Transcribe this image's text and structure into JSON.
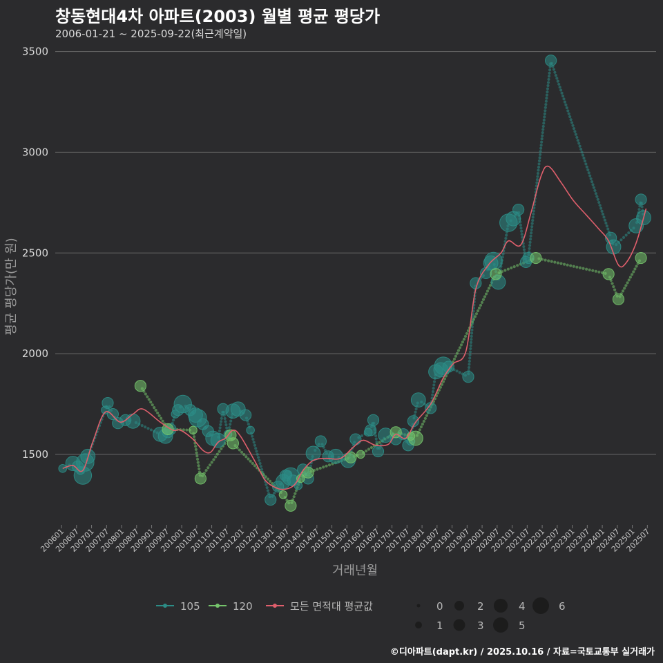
{
  "header": {
    "title": "창동현대4차 아파트(2003) 월별 평균 평당가",
    "subtitle": "2006-01-21 ~ 2025-09-22(최근계약일)"
  },
  "caption": "©디아파트(dapt.kr) / 2025.10.16 / 자료=국토교통부 실거래가",
  "colors": {
    "s105": "#2c8d86",
    "s120": "#75c46b",
    "avg": "#e05f6c",
    "grid": "#6a6a6a"
  },
  "chart_data": {
    "type": "scatter",
    "title": "창동현대4차 아파트(2003) 월별 평균 평당가",
    "xlabel": "거래년월",
    "ylabel": "평균 평당가(만 원)",
    "ylim": [
      1150,
      3550
    ],
    "yticks": [
      1500,
      2000,
      2500,
      3000,
      3500
    ],
    "xlim": [
      2005.833,
      2025.833
    ],
    "x_ticks": [
      "200601",
      "200607",
      "200701",
      "200707",
      "200801",
      "200807",
      "200901",
      "200907",
      "201001",
      "201007",
      "201101",
      "201107",
      "201201",
      "201207",
      "201301",
      "201307",
      "201401",
      "201407",
      "201501",
      "201507",
      "201601",
      "201607",
      "201701",
      "201707",
      "201801",
      "201807",
      "201901",
      "201907",
      "202001",
      "202007",
      "202101",
      "202107",
      "202201",
      "202207",
      "202301",
      "202307",
      "202401",
      "202407",
      "202501",
      "202507"
    ],
    "series": [
      {
        "name": "105",
        "points": [
          [
            2006.08,
            1430,
            1
          ],
          [
            2006.42,
            1455,
            3
          ],
          [
            2006.58,
            1440,
            2
          ],
          [
            2006.67,
            1420,
            1
          ],
          [
            2006.75,
            1395,
            4
          ],
          [
            2006.83,
            1460,
            4
          ],
          [
            2006.92,
            1490,
            3
          ],
          [
            2007.5,
            1720,
            1
          ],
          [
            2007.58,
            1755,
            2
          ],
          [
            2007.75,
            1700,
            2
          ],
          [
            2007.92,
            1655,
            2
          ],
          [
            2008.17,
            1670,
            2
          ],
          [
            2008.42,
            1665,
            3
          ],
          [
            2009.33,
            1600,
            3
          ],
          [
            2009.5,
            1590,
            3
          ],
          [
            2009.58,
            1610,
            2
          ],
          [
            2009.67,
            1625,
            2
          ],
          [
            2009.83,
            1700,
            1
          ],
          [
            2009.92,
            1720,
            2
          ],
          [
            2010.08,
            1750,
            4
          ],
          [
            2010.33,
            1720,
            2
          ],
          [
            2010.5,
            1695,
            3
          ],
          [
            2010.58,
            1680,
            4
          ],
          [
            2010.75,
            1650,
            2
          ],
          [
            2010.92,
            1615,
            2
          ],
          [
            2011.08,
            1580,
            3
          ],
          [
            2011.25,
            1570,
            3
          ],
          [
            2011.42,
            1725,
            2
          ],
          [
            2011.58,
            1600,
            1
          ],
          [
            2011.75,
            1715,
            3
          ],
          [
            2011.92,
            1725,
            3
          ],
          [
            2012.17,
            1695,
            2
          ],
          [
            2012.33,
            1620,
            1
          ],
          [
            2013.0,
            1275,
            2
          ],
          [
            2013.25,
            1340,
            2
          ],
          [
            2013.42,
            1365,
            3
          ],
          [
            2013.5,
            1395,
            2
          ],
          [
            2013.58,
            1400,
            1
          ],
          [
            2013.67,
            1390,
            4
          ],
          [
            2013.75,
            1370,
            2
          ],
          [
            2013.92,
            1345,
            1
          ],
          [
            2014.08,
            1425,
            2
          ],
          [
            2014.25,
            1380,
            2
          ],
          [
            2014.42,
            1505,
            3
          ],
          [
            2014.67,
            1565,
            2
          ],
          [
            2014.92,
            1490,
            2
          ],
          [
            2015.17,
            1490,
            3
          ],
          [
            2015.58,
            1470,
            3
          ],
          [
            2015.83,
            1575,
            2
          ],
          [
            2016.25,
            1610,
            1
          ],
          [
            2016.33,
            1620,
            2
          ],
          [
            2016.42,
            1670,
            2
          ],
          [
            2016.58,
            1515,
            2
          ],
          [
            2016.83,
            1595,
            3
          ],
          [
            2017.17,
            1575,
            2
          ],
          [
            2017.42,
            1600,
            2
          ],
          [
            2017.58,
            1545,
            2
          ],
          [
            2017.67,
            1565,
            1
          ],
          [
            2017.75,
            1665,
            2
          ],
          [
            2017.92,
            1770,
            3
          ],
          [
            2018.33,
            1730,
            2
          ],
          [
            2018.5,
            1910,
            3
          ],
          [
            2018.67,
            1920,
            3
          ],
          [
            2018.75,
            1940,
            4
          ],
          [
            2018.92,
            1935,
            2
          ],
          [
            2019.58,
            1885,
            2
          ],
          [
            2019.83,
            2350,
            2
          ],
          [
            2020.17,
            2400,
            2
          ],
          [
            2020.33,
            2450,
            3
          ],
          [
            2020.42,
            2460,
            4
          ],
          [
            2020.58,
            2355,
            3
          ],
          [
            2020.92,
            2650,
            4
          ],
          [
            2021.08,
            2670,
            3
          ],
          [
            2021.25,
            2715,
            2
          ],
          [
            2021.5,
            2455,
            2
          ],
          [
            2021.58,
            2475,
            2
          ],
          [
            2022.33,
            3455,
            2
          ],
          [
            2024.33,
            2575,
            2
          ],
          [
            2024.42,
            2530,
            3
          ],
          [
            2025.17,
            2635,
            3
          ],
          [
            2025.33,
            2765,
            2
          ],
          [
            2025.42,
            2675,
            3
          ]
        ]
      },
      {
        "name": "120",
        "points": [
          [
            2008.67,
            1840,
            2
          ],
          [
            2009.58,
            1625,
            2
          ],
          [
            2010.42,
            1620,
            1
          ],
          [
            2010.67,
            1380,
            2
          ],
          [
            2011.67,
            1595,
            2
          ],
          [
            2011.75,
            1555,
            2
          ],
          [
            2013.42,
            1300,
            1
          ],
          [
            2013.67,
            1245,
            2
          ],
          [
            2014.0,
            1380,
            1
          ],
          [
            2014.25,
            1410,
            2
          ],
          [
            2015.67,
            1485,
            2
          ],
          [
            2016.0,
            1500,
            1
          ],
          [
            2017.17,
            1610,
            2
          ],
          [
            2017.67,
            1590,
            1
          ],
          [
            2017.83,
            1580,
            3
          ],
          [
            2020.5,
            2395,
            2
          ],
          [
            2021.83,
            2475,
            2
          ],
          [
            2024.25,
            2395,
            2
          ],
          [
            2024.58,
            2270,
            2
          ],
          [
            2025.33,
            2475,
            2
          ]
        ]
      },
      {
        "name": "모든 면적대 평균값",
        "points": [
          [
            2006.08,
            1430
          ],
          [
            2006.42,
            1445
          ],
          [
            2006.75,
            1420
          ],
          [
            2007.08,
            1560
          ],
          [
            2007.5,
            1710
          ],
          [
            2008.0,
            1660
          ],
          [
            2008.42,
            1700
          ],
          [
            2008.75,
            1725
          ],
          [
            2009.33,
            1660
          ],
          [
            2009.75,
            1620
          ],
          [
            2010.0,
            1620
          ],
          [
            2010.42,
            1575
          ],
          [
            2010.75,
            1520
          ],
          [
            2011.0,
            1510
          ],
          [
            2011.25,
            1560
          ],
          [
            2011.5,
            1580
          ],
          [
            2011.75,
            1620
          ],
          [
            2012.0,
            1590
          ],
          [
            2012.5,
            1460
          ],
          [
            2012.83,
            1370
          ],
          [
            2013.25,
            1330
          ],
          [
            2013.58,
            1330
          ],
          [
            2013.83,
            1355
          ],
          [
            2014.08,
            1420
          ],
          [
            2014.42,
            1470
          ],
          [
            2014.83,
            1480
          ],
          [
            2015.33,
            1480
          ],
          [
            2015.75,
            1535
          ],
          [
            2016.08,
            1570
          ],
          [
            2016.5,
            1545
          ],
          [
            2016.92,
            1550
          ],
          [
            2017.17,
            1600
          ],
          [
            2017.5,
            1580
          ],
          [
            2017.83,
            1660
          ],
          [
            2018.33,
            1750
          ],
          [
            2018.75,
            1880
          ],
          [
            2019.08,
            1950
          ],
          [
            2019.5,
            2010
          ],
          [
            2019.83,
            2320
          ],
          [
            2020.25,
            2440
          ],
          [
            2020.67,
            2500
          ],
          [
            2020.92,
            2560
          ],
          [
            2021.33,
            2540
          ],
          [
            2021.67,
            2700
          ],
          [
            2022.0,
            2880
          ],
          [
            2022.25,
            2930
          ],
          [
            2022.67,
            2850
          ],
          [
            2023.08,
            2760
          ],
          [
            2023.5,
            2690
          ],
          [
            2023.92,
            2620
          ],
          [
            2024.25,
            2560
          ],
          [
            2024.58,
            2440
          ],
          [
            2024.83,
            2450
          ],
          [
            2025.17,
            2550
          ],
          [
            2025.5,
            2720
          ]
        ]
      }
    ],
    "legend": {
      "series_labels": [
        "105",
        "120",
        "모든 면적대 평균값"
      ],
      "size_labels": [
        "0",
        "1",
        "2",
        "3",
        "4",
        "5",
        "6"
      ],
      "placement": "bottom"
    }
  }
}
